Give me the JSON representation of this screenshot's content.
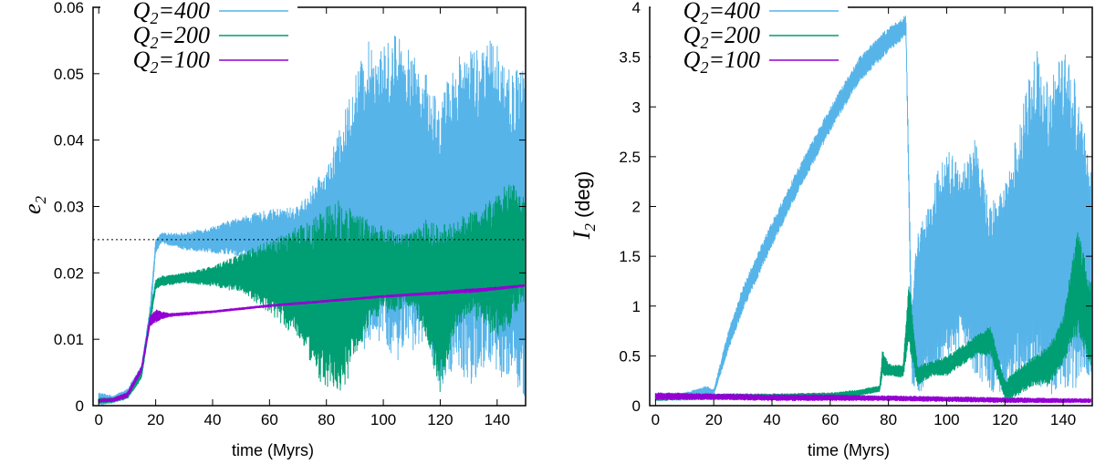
{
  "chart_data": [
    {
      "type": "line",
      "xlabel": "time (Myrs)",
      "ylabel": {
        "symbol": "e",
        "subscript": "2",
        "unit": ""
      },
      "xlim": [
        -2,
        150
      ],
      "ylim": [
        0,
        0.06
      ],
      "xticks": [
        0,
        20,
        40,
        60,
        80,
        100,
        120,
        140
      ],
      "yticks": [
        0,
        0.01,
        0.02,
        0.03,
        0.04,
        0.05,
        0.06
      ],
      "ytick_labels": [
        "0",
        "0.01",
        "0.02",
        "0.03",
        "0.04",
        "0.05",
        "0.06"
      ],
      "reference_line": {
        "y": 0.025,
        "style": "dotted"
      },
      "legend_position": "top-left",
      "series": [
        {
          "name": "Q₂=400",
          "display_q": "Q",
          "display_sub": "2",
          "display_val": "=400",
          "color": "#56b4e9",
          "envelope": [
            [
              0,
              0.0,
              0.002
            ],
            [
              5,
              0.0004,
              0.0015
            ],
            [
              10,
              0.001,
              0.0025
            ],
            [
              15,
              0.004,
              0.006
            ],
            [
              18,
              0.012,
              0.015
            ],
            [
              20,
              0.023,
              0.025
            ],
            [
              22,
              0.0245,
              0.026
            ],
            [
              30,
              0.0235,
              0.026
            ],
            [
              40,
              0.023,
              0.027
            ],
            [
              50,
              0.0225,
              0.0285
            ],
            [
              60,
              0.021,
              0.0295
            ],
            [
              70,
              0.021,
              0.03
            ],
            [
              80,
              0.014,
              0.036
            ],
            [
              85,
              0.012,
              0.042
            ],
            [
              90,
              0.008,
              0.05
            ],
            [
              95,
              0.008,
              0.055
            ],
            [
              100,
              0.009,
              0.054
            ],
            [
              105,
              0.006,
              0.057
            ],
            [
              110,
              0.008,
              0.053
            ],
            [
              115,
              0.01,
              0.05
            ],
            [
              120,
              0.002,
              0.046
            ],
            [
              125,
              0.006,
              0.052
            ],
            [
              130,
              0.003,
              0.055
            ],
            [
              135,
              0.005,
              0.054
            ],
            [
              140,
              0.003,
              0.056
            ],
            [
              145,
              0.004,
              0.05
            ],
            [
              149,
              0.001,
              0.052
            ]
          ]
        },
        {
          "name": "Q₂=200",
          "display_q": "Q",
          "display_sub": "2",
          "display_val": "=200",
          "color": "#009e73",
          "envelope": [
            [
              0,
              0.0003,
              0.0012
            ],
            [
              5,
              0.0005,
              0.0012
            ],
            [
              10,
              0.001,
              0.002
            ],
            [
              15,
              0.004,
              0.0055
            ],
            [
              18,
              0.012,
              0.014
            ],
            [
              20,
              0.0175,
              0.019
            ],
            [
              22,
              0.018,
              0.0195
            ],
            [
              30,
              0.0185,
              0.02
            ],
            [
              40,
              0.018,
              0.021
            ],
            [
              50,
              0.017,
              0.023
            ],
            [
              60,
              0.014,
              0.025
            ],
            [
              70,
              0.01,
              0.027
            ],
            [
              75,
              0.006,
              0.028
            ],
            [
              78,
              0.003,
              0.029
            ],
            [
              80,
              0.003,
              0.03
            ],
            [
              85,
              0.001,
              0.031
            ],
            [
              90,
              0.007,
              0.029
            ],
            [
              95,
              0.012,
              0.028
            ],
            [
              100,
              0.014,
              0.027
            ],
            [
              105,
              0.014,
              0.026
            ],
            [
              110,
              0.015,
              0.026
            ],
            [
              115,
              0.01,
              0.028
            ],
            [
              120,
              0.002,
              0.027
            ],
            [
              125,
              0.011,
              0.028
            ],
            [
              130,
              0.014,
              0.029
            ],
            [
              135,
              0.012,
              0.03
            ],
            [
              140,
              0.01,
              0.032
            ],
            [
              145,
              0.012,
              0.034
            ],
            [
              149,
              0.015,
              0.032
            ]
          ]
        },
        {
          "name": "Q₂=100",
          "display_q": "Q",
          "display_sub": "2",
          "display_val": "=100",
          "color": "#9400d3",
          "envelope": [
            [
              0,
              0.0005,
              0.001
            ],
            [
              5,
              0.0006,
              0.0011
            ],
            [
              10,
              0.0012,
              0.002
            ],
            [
              15,
              0.005,
              0.006
            ],
            [
              18,
              0.012,
              0.0135
            ],
            [
              20,
              0.0125,
              0.0145
            ],
            [
              22,
              0.013,
              0.0142
            ],
            [
              25,
              0.0134,
              0.0139
            ],
            [
              40,
              0.014,
              0.0143
            ],
            [
              60,
              0.0149,
              0.0152
            ],
            [
              80,
              0.0156,
              0.0159
            ],
            [
              100,
              0.0163,
              0.0166
            ],
            [
              120,
              0.0168,
              0.0172
            ],
            [
              130,
              0.017,
              0.0176
            ],
            [
              135,
              0.0172,
              0.0177
            ],
            [
              149,
              0.0179,
              0.0182
            ]
          ]
        }
      ]
    },
    {
      "type": "line",
      "xlabel": "time (Myrs)",
      "ylabel": {
        "symbol": "I",
        "subscript": "2",
        "unit": " (deg)"
      },
      "xlim": [
        -2,
        150
      ],
      "ylim": [
        0,
        4
      ],
      "xticks": [
        0,
        20,
        40,
        60,
        80,
        100,
        120,
        140
      ],
      "yticks": [
        0,
        0.5,
        1,
        1.5,
        2,
        2.5,
        3,
        3.5,
        4
      ],
      "ytick_labels": [
        "0",
        "0.5",
        "1",
        "1.5",
        "2",
        "2.5",
        "3",
        "3.5",
        "4"
      ],
      "legend_position": "top-left",
      "series": [
        {
          "name": "Q₂=400",
          "display_q": "Q",
          "display_sub": "2",
          "display_val": "=400",
          "color": "#56b4e9",
          "envelope": [
            [
              0,
              0.05,
              0.13
            ],
            [
              10,
              0.06,
              0.13
            ],
            [
              18,
              0.08,
              0.2
            ],
            [
              20,
              0.1,
              0.16
            ],
            [
              25,
              0.55,
              0.75
            ],
            [
              30,
              0.95,
              1.2
            ],
            [
              40,
              1.6,
              1.85
            ],
            [
              50,
              2.2,
              2.45
            ],
            [
              60,
              2.75,
              3.0
            ],
            [
              70,
              3.25,
              3.5
            ],
            [
              80,
              3.55,
              3.8
            ],
            [
              86,
              3.7,
              3.92
            ],
            [
              88,
              0.2,
              1.0
            ],
            [
              90,
              0.1,
              1.8
            ],
            [
              95,
              0.3,
              2.2
            ],
            [
              100,
              0.4,
              2.6
            ],
            [
              105,
              0.6,
              2.4
            ],
            [
              110,
              0.3,
              2.7
            ],
            [
              115,
              0.1,
              2.0
            ],
            [
              120,
              0.05,
              2.3
            ],
            [
              125,
              0.3,
              2.8
            ],
            [
              130,
              0.1,
              3.7
            ],
            [
              135,
              0.1,
              3.2
            ],
            [
              140,
              0.1,
              3.6
            ],
            [
              145,
              0.1,
              3.2
            ],
            [
              149,
              0.2,
              2.5
            ]
          ]
        },
        {
          "name": "Q₂=200",
          "display_q": "Q",
          "display_sub": "2",
          "display_val": "=200",
          "color": "#009e73",
          "envelope": [
            [
              0,
              0.05,
              0.12
            ],
            [
              20,
              0.06,
              0.12
            ],
            [
              40,
              0.06,
              0.12
            ],
            [
              60,
              0.07,
              0.13
            ],
            [
              70,
              0.1,
              0.16
            ],
            [
              77,
              0.14,
              0.2
            ],
            [
              78,
              0.3,
              0.58
            ],
            [
              80,
              0.3,
              0.42
            ],
            [
              85,
              0.28,
              0.4
            ],
            [
              87,
              0.6,
              1.3
            ],
            [
              90,
              0.2,
              0.4
            ],
            [
              95,
              0.3,
              0.45
            ],
            [
              100,
              0.3,
              0.5
            ],
            [
              105,
              0.4,
              0.6
            ],
            [
              110,
              0.5,
              0.7
            ],
            [
              115,
              0.5,
              0.8
            ],
            [
              120,
              0.05,
              0.25
            ],
            [
              125,
              0.1,
              0.4
            ],
            [
              130,
              0.2,
              0.5
            ],
            [
              135,
              0.2,
              0.6
            ],
            [
              140,
              0.4,
              0.9
            ],
            [
              145,
              0.7,
              1.8
            ],
            [
              149,
              0.4,
              1.3
            ]
          ]
        },
        {
          "name": "Q₂=100",
          "display_q": "Q",
          "display_sub": "2",
          "display_val": "=100",
          "color": "#9400d3",
          "envelope": [
            [
              0,
              0.06,
              0.13
            ],
            [
              20,
              0.06,
              0.12
            ],
            [
              40,
              0.05,
              0.11
            ],
            [
              60,
              0.05,
              0.11
            ],
            [
              80,
              0.05,
              0.1
            ],
            [
              100,
              0.04,
              0.09
            ],
            [
              120,
              0.03,
              0.08
            ],
            [
              149,
              0.03,
              0.07
            ]
          ]
        }
      ]
    }
  ]
}
